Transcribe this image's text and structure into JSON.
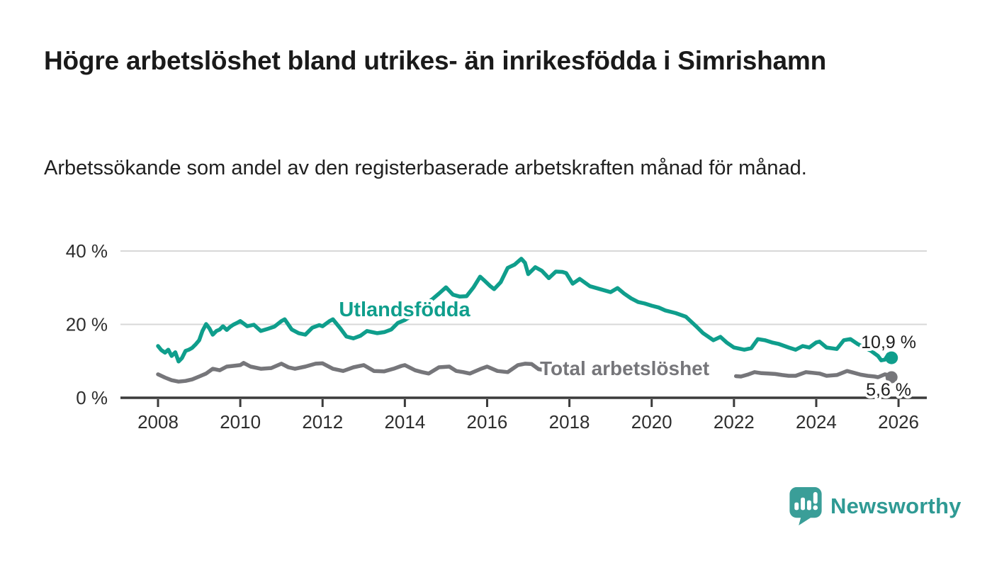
{
  "page": {
    "title": "Högre arbetslöshet bland utrikes- än inrikesfödda i Simrishamn",
    "subtitle": "Arbetssökande som andel av den registerbaserade arbetskraften månad för månad.",
    "brand": {
      "name": "Newsworthy",
      "logo_icon": "bar-chart-speech-bubble",
      "text_color": "#2f9a94",
      "icon_color": "#3a9e98"
    }
  },
  "chart_data": {
    "type": "line",
    "title": "",
    "xlabel": "",
    "ylabel": "",
    "x_axis": {
      "unit": "year",
      "ticks": [
        2008,
        2010,
        2012,
        2014,
        2016,
        2018,
        2020,
        2022,
        2024,
        2026
      ],
      "range": [
        2007.1,
        2026.7
      ]
    },
    "y_axis": {
      "ticks": [
        {
          "value": 0,
          "label": "0 %"
        },
        {
          "value": 20,
          "label": "20 %"
        },
        {
          "value": 40,
          "label": "40 %"
        }
      ],
      "range": [
        0,
        44
      ],
      "grid": true
    },
    "legend_position": "inline-labels-on-lines",
    "colors": {
      "axis": "#3b3b3b",
      "grid": "#d8d8d8",
      "value_label": "#1d1d1d"
    },
    "series": [
      {
        "name": "Utlandsfödda",
        "color": "#0f9e8c",
        "end_label": "10,9 %",
        "end_value": 10.9,
        "segments": [
          [
            [
              2008.0,
              14.1
            ],
            [
              2008.08,
              13.0
            ],
            [
              2008.17,
              12.3
            ],
            [
              2008.25,
              13.1
            ],
            [
              2008.33,
              11.4
            ],
            [
              2008.42,
              12.4
            ],
            [
              2008.5,
              9.9
            ],
            [
              2008.58,
              10.8
            ],
            [
              2008.67,
              12.8
            ],
            [
              2008.75,
              13.1
            ],
            [
              2008.83,
              13.6
            ],
            [
              2008.92,
              14.6
            ],
            [
              2009.0,
              15.7
            ],
            [
              2009.08,
              18.2
            ],
            [
              2009.17,
              20.1
            ],
            [
              2009.25,
              18.9
            ],
            [
              2009.33,
              17.2
            ],
            [
              2009.42,
              18.2
            ],
            [
              2009.5,
              18.6
            ],
            [
              2009.58,
              19.5
            ],
            [
              2009.67,
              18.5
            ],
            [
              2009.75,
              19.3
            ],
            [
              2009.83,
              19.9
            ],
            [
              2009.92,
              20.4
            ],
            [
              2010.0,
              20.9
            ],
            [
              2010.17,
              19.5
            ],
            [
              2010.33,
              19.9
            ],
            [
              2010.5,
              18.2
            ],
            [
              2010.67,
              18.8
            ],
            [
              2010.83,
              19.4
            ],
            [
              2011.0,
              20.9
            ],
            [
              2011.08,
              21.4
            ],
            [
              2011.25,
              18.6
            ],
            [
              2011.42,
              17.6
            ],
            [
              2011.58,
              17.2
            ],
            [
              2011.75,
              19.1
            ],
            [
              2011.92,
              19.8
            ],
            [
              2012.0,
              19.5
            ],
            [
              2012.17,
              20.9
            ],
            [
              2012.25,
              21.4
            ],
            [
              2012.42,
              19.1
            ],
            [
              2012.58,
              16.7
            ],
            [
              2012.75,
              16.2
            ],
            [
              2012.92,
              16.9
            ],
            [
              2013.08,
              18.2
            ],
            [
              2013.33,
              17.6
            ],
            [
              2013.5,
              17.9
            ],
            [
              2013.67,
              18.6
            ],
            [
              2013.83,
              20.4
            ],
            [
              2014.0,
              21.2
            ],
            [
              2014.17,
              22.4
            ],
            [
              2014.33,
              23.9
            ],
            [
              2014.5,
              25.4
            ],
            [
              2014.67,
              26.9
            ],
            [
              2014.83,
              28.4
            ],
            [
              2015.0,
              30.1
            ],
            [
              2015.17,
              28.1
            ],
            [
              2015.33,
              27.6
            ],
            [
              2015.5,
              27.7
            ],
            [
              2015.67,
              30.1
            ],
            [
              2015.83,
              33.0
            ],
            [
              2015.92,
              32.1
            ],
            [
              2016.08,
              30.4
            ],
            [
              2016.17,
              29.6
            ],
            [
              2016.33,
              31.5
            ],
            [
              2016.5,
              35.4
            ],
            [
              2016.67,
              36.3
            ],
            [
              2016.83,
              37.9
            ],
            [
              2016.92,
              36.8
            ],
            [
              2017.0,
              33.7
            ],
            [
              2017.17,
              35.6
            ],
            [
              2017.33,
              34.6
            ],
            [
              2017.5,
              32.6
            ],
            [
              2017.67,
              34.4
            ],
            [
              2017.83,
              34.3
            ],
            [
              2017.92,
              34.0
            ],
            [
              2018.08,
              31.1
            ],
            [
              2018.25,
              32.4
            ],
            [
              2018.5,
              30.4
            ],
            [
              2018.75,
              29.6
            ],
            [
              2019.0,
              28.8
            ],
            [
              2019.17,
              29.9
            ],
            [
              2019.33,
              28.4
            ],
            [
              2019.5,
              27.1
            ],
            [
              2019.67,
              26.1
            ],
            [
              2019.83,
              25.7
            ],
            [
              2020.0,
              25.1
            ],
            [
              2020.17,
              24.6
            ],
            [
              2020.33,
              23.8
            ],
            [
              2020.58,
              23.1
            ],
            [
              2020.83,
              22.1
            ],
            [
              2021.08,
              19.5
            ],
            [
              2021.25,
              17.6
            ],
            [
              2021.5,
              15.7
            ],
            [
              2021.67,
              16.6
            ],
            [
              2021.83,
              15.0
            ],
            [
              2022.0,
              13.7
            ],
            [
              2022.25,
              13.1
            ],
            [
              2022.42,
              13.5
            ],
            [
              2022.58,
              16.0
            ],
            [
              2022.75,
              15.7
            ],
            [
              2022.92,
              15.1
            ],
            [
              2023.08,
              14.7
            ],
            [
              2023.33,
              13.7
            ],
            [
              2023.5,
              13.1
            ],
            [
              2023.67,
              14.1
            ],
            [
              2023.83,
              13.7
            ],
            [
              2024.0,
              15.1
            ],
            [
              2024.08,
              15.3
            ],
            [
              2024.25,
              13.7
            ],
            [
              2024.5,
              13.3
            ],
            [
              2024.67,
              15.7
            ],
            [
              2024.83,
              16.0
            ],
            [
              2025.0,
              14.7
            ],
            [
              2025.17,
              13.7
            ],
            [
              2025.33,
              12.8
            ],
            [
              2025.5,
              11.4
            ],
            [
              2025.58,
              10.2
            ],
            [
              2025.67,
              10.4
            ],
            [
              2025.75,
              11.8
            ],
            [
              2025.83,
              10.9
            ]
          ]
        ]
      },
      {
        "name": "Total arbetslöshet",
        "color": "#76767a",
        "end_label": "5,6 %",
        "end_value": 5.6,
        "segments": [
          [
            [
              2008.0,
              6.4
            ],
            [
              2008.17,
              5.5
            ],
            [
              2008.33,
              4.8
            ],
            [
              2008.5,
              4.4
            ],
            [
              2008.67,
              4.6
            ],
            [
              2008.83,
              5.0
            ],
            [
              2009.0,
              5.8
            ],
            [
              2009.17,
              6.6
            ],
            [
              2009.33,
              7.9
            ],
            [
              2009.5,
              7.5
            ],
            [
              2009.67,
              8.5
            ],
            [
              2009.83,
              8.7
            ],
            [
              2010.0,
              8.9
            ],
            [
              2010.08,
              9.5
            ],
            [
              2010.25,
              8.5
            ],
            [
              2010.5,
              7.9
            ],
            [
              2010.75,
              8.1
            ],
            [
              2011.0,
              9.3
            ],
            [
              2011.17,
              8.3
            ],
            [
              2011.33,
              7.9
            ],
            [
              2011.58,
              8.5
            ],
            [
              2011.83,
              9.3
            ],
            [
              2012.0,
              9.4
            ],
            [
              2012.25,
              7.9
            ],
            [
              2012.5,
              7.3
            ],
            [
              2012.75,
              8.3
            ],
            [
              2013.0,
              8.9
            ],
            [
              2013.25,
              7.3
            ],
            [
              2013.5,
              7.2
            ],
            [
              2013.75,
              8.0
            ],
            [
              2013.92,
              8.7
            ],
            [
              2014.0,
              8.9
            ],
            [
              2014.25,
              7.5
            ],
            [
              2014.42,
              7.0
            ],
            [
              2014.58,
              6.6
            ],
            [
              2014.83,
              8.3
            ],
            [
              2015.08,
              8.5
            ],
            [
              2015.25,
              7.3
            ],
            [
              2015.42,
              7.0
            ],
            [
              2015.58,
              6.6
            ],
            [
              2015.83,
              7.8
            ],
            [
              2016.0,
              8.5
            ],
            [
              2016.25,
              7.3
            ],
            [
              2016.5,
              7.0
            ],
            [
              2016.75,
              8.9
            ],
            [
              2016.92,
              9.3
            ],
            [
              2017.08,
              9.2
            ],
            [
              2017.25,
              7.8
            ],
            [
              2017.42,
              7.5
            ],
            [
              2017.58,
              8.0
            ]
          ],
          [
            [
              2022.05,
              5.9
            ],
            [
              2022.17,
              5.8
            ],
            [
              2022.33,
              6.3
            ],
            [
              2022.5,
              7.0
            ],
            [
              2022.67,
              6.7
            ],
            [
              2022.83,
              6.6
            ],
            [
              2023.0,
              6.5
            ],
            [
              2023.17,
              6.2
            ],
            [
              2023.33,
              6.0
            ],
            [
              2023.5,
              6.0
            ],
            [
              2023.75,
              7.0
            ],
            [
              2023.92,
              6.8
            ],
            [
              2024.08,
              6.6
            ],
            [
              2024.25,
              6.0
            ],
            [
              2024.5,
              6.2
            ],
            [
              2024.75,
              7.3
            ],
            [
              2024.92,
              6.8
            ],
            [
              2025.08,
              6.3
            ],
            [
              2025.25,
              6.0
            ],
            [
              2025.42,
              5.8
            ],
            [
              2025.5,
              5.6
            ],
            [
              2025.67,
              6.4
            ],
            [
              2025.75,
              6.2
            ],
            [
              2025.83,
              5.6
            ]
          ]
        ]
      }
    ]
  }
}
